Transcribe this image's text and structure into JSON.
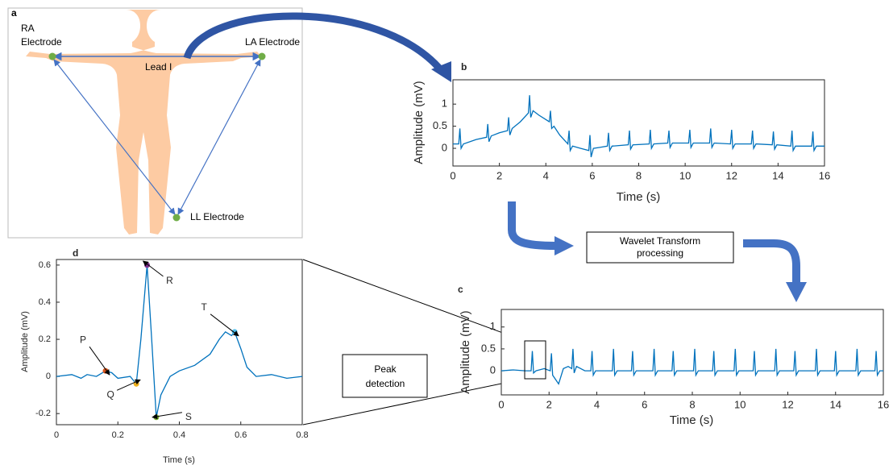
{
  "diagram": {
    "panel": "a",
    "ra_electrode": [
      "RA",
      "Electrode"
    ],
    "la_electrode": "LA Electrode",
    "ll_electrode": "LL Electrode",
    "lead": "Lead I",
    "wavelet_box": [
      "Wavelet Transform",
      "processing"
    ],
    "peak_box": [
      "Peak",
      "detection"
    ]
  },
  "chart_data": [
    {
      "type": "line",
      "panel": "b",
      "x_label": "Time (s)",
      "y_label": "Amplitude (mV)",
      "color": "#0072bd",
      "xlim": [
        0,
        16
      ],
      "ylim": [
        -0.4,
        1.55
      ],
      "xticks": [
        0,
        2,
        4,
        6,
        8,
        10,
        12,
        14,
        16
      ],
      "yticks": [
        0,
        0.5,
        1
      ],
      "x": [
        0,
        0.25,
        0.3,
        0.35,
        0.45,
        1.0,
        1.45,
        1.5,
        1.55,
        1.65,
        2.0,
        2.35,
        2.4,
        2.45,
        2.55,
        2.9,
        3.25,
        3.3,
        3.35,
        3.45,
        3.7,
        4.15,
        4.2,
        4.25,
        4.35,
        4.6,
        4.95,
        5.0,
        5.05,
        5.15,
        5.5,
        5.85,
        5.9,
        5.95,
        6.05,
        6.3,
        6.65,
        6.7,
        6.75,
        6.85,
        7.55,
        7.6,
        7.65,
        7.75,
        8.45,
        8.5,
        8.55,
        8.65,
        9.25,
        9.3,
        9.35,
        9.45,
        10.15,
        10.2,
        10.25,
        10.35,
        11.05,
        11.1,
        11.15,
        11.25,
        11.95,
        12.0,
        12.05,
        12.15,
        12.85,
        12.9,
        12.95,
        13.05,
        13.75,
        13.8,
        13.85,
        13.95,
        14.55,
        14.6,
        14.65,
        14.75,
        15.45,
        15.5,
        15.55,
        15.65,
        16.0
      ],
      "values": [
        0.1,
        0.1,
        0.45,
        0.0,
        0.1,
        0.2,
        0.25,
        0.55,
        0.15,
        0.28,
        0.35,
        0.4,
        0.7,
        0.3,
        0.45,
        0.6,
        0.8,
        1.2,
        0.7,
        0.85,
        0.75,
        0.6,
        0.85,
        0.45,
        0.5,
        0.3,
        0.1,
        0.4,
        -0.05,
        0.05,
        0.0,
        -0.05,
        0.3,
        -0.2,
        0.0,
        0.02,
        0.05,
        0.35,
        -0.05,
        0.05,
        0.08,
        0.4,
        -0.02,
        0.08,
        0.1,
        0.42,
        0.0,
        0.1,
        0.12,
        0.4,
        0.02,
        0.12,
        0.12,
        0.42,
        0.02,
        0.12,
        0.12,
        0.45,
        0.02,
        0.12,
        0.1,
        0.42,
        0.0,
        0.1,
        0.1,
        0.4,
        0.0,
        0.1,
        0.08,
        0.38,
        -0.02,
        0.08,
        0.05,
        0.4,
        -0.05,
        0.05,
        0.05,
        0.38,
        -0.05,
        0.05,
        0.05
      ]
    },
    {
      "type": "line",
      "panel": "c",
      "x_label": "Time (s)",
      "y_label": "Amplitude (mV)",
      "color": "#0072bd",
      "xlim": [
        0,
        16
      ],
      "ylim": [
        -0.55,
        1.4
      ],
      "xticks": [
        0,
        2,
        4,
        6,
        8,
        10,
        12,
        14,
        16
      ],
      "yticks": [
        0,
        0.5,
        1
      ],
      "x": [
        0,
        0.5,
        1.0,
        1.25,
        1.3,
        1.35,
        1.45,
        1.8,
        2.05,
        2.1,
        2.15,
        2.4,
        2.6,
        2.8,
        2.95,
        3.0,
        3.05,
        3.15,
        3.5,
        3.75,
        3.8,
        3.85,
        3.95,
        4.65,
        4.7,
        4.75,
        4.85,
        5.45,
        5.5,
        5.55,
        5.65,
        6.35,
        6.4,
        6.45,
        6.55,
        7.15,
        7.2,
        7.25,
        7.35,
        8.05,
        8.1,
        8.15,
        8.25,
        8.85,
        8.9,
        8.95,
        9.05,
        9.75,
        9.8,
        9.85,
        9.95,
        10.55,
        10.6,
        10.65,
        10.75,
        11.45,
        11.5,
        11.55,
        11.65,
        12.25,
        12.3,
        12.35,
        12.45,
        13.15,
        13.2,
        13.25,
        13.35,
        13.95,
        14.0,
        14.05,
        14.15,
        14.85,
        14.9,
        14.95,
        15.05,
        15.65,
        15.7,
        15.75,
        15.85,
        16.0
      ],
      "values": [
        0.0,
        0.02,
        0.0,
        0.0,
        0.45,
        -0.05,
        0.0,
        0.05,
        0.0,
        0.4,
        -0.1,
        -0.3,
        0.05,
        0.1,
        0.05,
        0.5,
        -0.05,
        0.1,
        0.0,
        0.0,
        0.45,
        -0.1,
        0.0,
        0.0,
        0.5,
        -0.1,
        0.0,
        0.0,
        0.45,
        -0.1,
        0.0,
        0.0,
        0.5,
        -0.1,
        0.0,
        0.0,
        0.45,
        -0.1,
        0.0,
        0.0,
        0.5,
        -0.1,
        0.0,
        0.0,
        0.45,
        -0.1,
        0.0,
        0.0,
        0.5,
        -0.1,
        0.0,
        0.0,
        0.45,
        -0.1,
        0.0,
        0.0,
        0.5,
        -0.1,
        0.0,
        0.0,
        0.45,
        -0.1,
        0.0,
        0.0,
        0.5,
        -0.1,
        0.0,
        0.0,
        0.45,
        -0.1,
        0.0,
        0.0,
        0.5,
        -0.1,
        0.0,
        0.0,
        0.45,
        -0.1,
        0.0,
        0.0
      ]
    },
    {
      "type": "line",
      "panel": "d",
      "x_label": "Time (s)",
      "y_label": "Amplitude (mV)",
      "color": "#0072bd",
      "xlim": [
        0,
        0.8
      ],
      "ylim": [
        -0.26,
        0.63
      ],
      "xticks": [
        0,
        0.2,
        0.4,
        0.6,
        0.8
      ],
      "yticks": [
        -0.2,
        0,
        0.2,
        0.4,
        0.6
      ],
      "x": [
        0,
        0.05,
        0.08,
        0.1,
        0.13,
        0.16,
        0.18,
        0.2,
        0.24,
        0.26,
        0.275,
        0.295,
        0.31,
        0.325,
        0.34,
        0.37,
        0.4,
        0.45,
        0.5,
        0.53,
        0.55,
        0.57,
        0.58,
        0.6,
        0.62,
        0.65,
        0.7,
        0.75,
        0.8
      ],
      "values": [
        0,
        0.01,
        -0.01,
        0.01,
        0.0,
        0.03,
        0.02,
        -0.01,
        0.0,
        -0.04,
        0.2,
        0.6,
        0.2,
        -0.22,
        -0.1,
        0.0,
        0.03,
        0.06,
        0.12,
        0.2,
        0.24,
        0.22,
        0.24,
        0.15,
        0.05,
        0.0,
        0.01,
        -0.01,
        0.0
      ],
      "points": [
        {
          "label": "P",
          "x": 0.16,
          "y": 0.03,
          "color": "#d95319"
        },
        {
          "label": "Q",
          "x": 0.26,
          "y": -0.04,
          "color": "#edb120"
        },
        {
          "label": "R",
          "x": 0.295,
          "y": 0.6,
          "color": "#7e2f8e"
        },
        {
          "label": "S",
          "x": 0.325,
          "y": -0.22,
          "color": "#77ac30"
        },
        {
          "label": "T",
          "x": 0.58,
          "y": 0.24,
          "color": "#4dbeee"
        }
      ]
    }
  ]
}
